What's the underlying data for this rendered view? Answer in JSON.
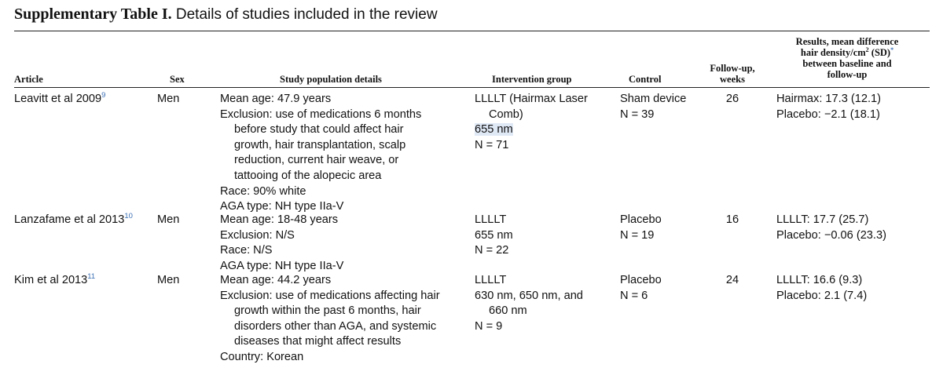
{
  "caption": {
    "lead": "Supplementary Table I.",
    "text": "Details of studies included in the review"
  },
  "headers": {
    "article": "Article",
    "sex": "Sex",
    "population": "Study population details",
    "intervention": "Intervention group",
    "control": "Control",
    "followup_1": "Follow-up,",
    "followup_2": "weeks",
    "results_1": "Results, mean difference",
    "results_2a": "hair density/cm",
    "results_2sup": "2",
    "results_2b": " (SD)",
    "results_2ast": "*",
    "results_3": "between baseline and",
    "results_4": "follow-up"
  },
  "rows": [
    {
      "article": "Leavitt et al 2009",
      "ref": "9",
      "sex": "Men",
      "population": [
        {
          "text": "Mean age: 47.9 years",
          "indent": false
        },
        {
          "text": "Exclusion: use of medications 6 months",
          "indent": false
        },
        {
          "text": "before study that could affect hair",
          "indent": true
        },
        {
          "text": "growth, hair transplantation, scalp",
          "indent": true
        },
        {
          "text": "reduction, current hair weave, or",
          "indent": true
        },
        {
          "text": "tattooing of the alopecic area",
          "indent": true
        },
        {
          "text": "Race: 90% white",
          "indent": false
        },
        {
          "text": "AGA type: NH type IIa-V",
          "indent": false
        }
      ],
      "intervention": [
        {
          "text": "LLLLT (Hairmax Laser",
          "indent": false
        },
        {
          "text": "Comb)",
          "indent": true
        },
        {
          "text": "655 nm",
          "indent": false
        },
        {
          "text": "N = 71",
          "indent": false
        }
      ],
      "control": [
        "Sham device",
        "N = 39"
      ],
      "followup": "26",
      "results": [
        "Hairmax: 17.3 (12.1)",
        "Placebo: −2.1 (18.1)"
      ]
    },
    {
      "article": "Lanzafame et al 2013",
      "ref": "10",
      "sex": "Men",
      "population": [
        {
          "text": "Mean age: 18-48 years",
          "indent": false
        },
        {
          "text": "Exclusion: N/S",
          "indent": false
        },
        {
          "text": "Race: N/S",
          "indent": false
        },
        {
          "text": "AGA type: NH type IIa-V",
          "indent": false
        }
      ],
      "intervention": [
        {
          "text": "LLLLT",
          "indent": false
        },
        {
          "text": "655 nm",
          "indent": false
        },
        {
          "text": "N = 22",
          "indent": false
        }
      ],
      "control": [
        "Placebo",
        "N = 19"
      ],
      "followup": "16",
      "results": [
        "LLLLT: 17.7 (25.7)",
        "Placebo: −0.06 (23.3)"
      ]
    },
    {
      "article": "Kim et al 2013",
      "ref": "11",
      "sex": "Men",
      "population": [
        {
          "text": "Mean age: 44.2 years",
          "indent": false
        },
        {
          "text": "Exclusion: use of medications affecting hair",
          "indent": false
        },
        {
          "text": "growth within the past 6 months, hair",
          "indent": true
        },
        {
          "text": "disorders other than AGA, and systemic",
          "indent": true
        },
        {
          "text": "diseases that might affect results",
          "indent": true
        },
        {
          "text": "Country: Korean",
          "indent": false
        }
      ],
      "intervention": [
        {
          "text": "LLLLT",
          "indent": false
        },
        {
          "text": "630 nm, 650 nm, and",
          "indent": false
        },
        {
          "text": "660 nm",
          "indent": true
        },
        {
          "text": "N = 9",
          "indent": false
        }
      ],
      "control": [
        "Placebo",
        "N = 6"
      ],
      "followup": "24",
      "results": [
        "LLLLT: 16.6 (9.3)",
        "Placebo: 2.1 (7.4)"
      ]
    }
  ]
}
